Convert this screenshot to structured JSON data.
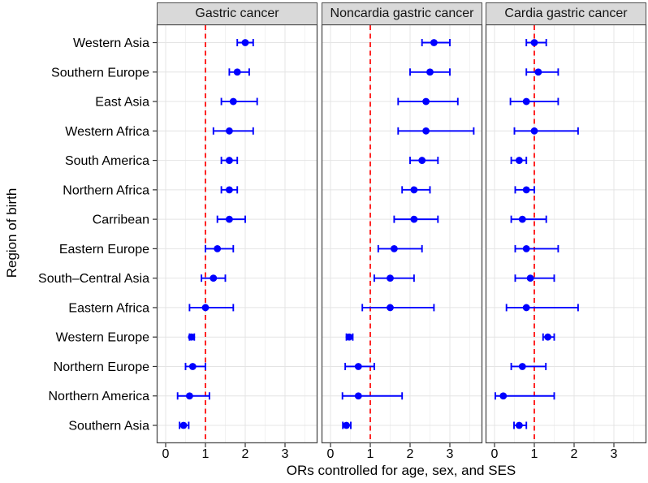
{
  "chart_data": {
    "type": "scatter",
    "variant": "forest-plot-with-error-bars",
    "facets": 3,
    "xlabel": "ORs controlled for age, sex, and SES",
    "ylabel": "Region of birth",
    "xticks": [
      0,
      1,
      2,
      3
    ],
    "xlim": [
      -0.22,
      3.8
    ],
    "grid": true,
    "legend": false,
    "reference_line": {
      "x": 1,
      "style": "dashed"
    },
    "categories": [
      "Western Asia",
      "Southern Europe",
      "East Asia",
      "Western Africa",
      "South America",
      "Northern Africa",
      "Carribean",
      "Eastern Europe",
      "South–Central Asia",
      "Eastern Africa",
      "Western Europe",
      "Northern Europe",
      "Northern America",
      "Southern Asia"
    ],
    "panels": [
      {
        "title": "Gastric cancer",
        "points": [
          {
            "or": 2.0,
            "lo": 1.8,
            "hi": 2.2
          },
          {
            "or": 1.8,
            "lo": 1.6,
            "hi": 2.1
          },
          {
            "or": 1.7,
            "lo": 1.4,
            "hi": 2.3
          },
          {
            "or": 1.6,
            "lo": 1.2,
            "hi": 2.2
          },
          {
            "or": 1.6,
            "lo": 1.4,
            "hi": 1.8
          },
          {
            "or": 1.6,
            "lo": 1.4,
            "hi": 1.8
          },
          {
            "or": 1.6,
            "lo": 1.3,
            "hi": 2.0
          },
          {
            "or": 1.3,
            "lo": 1.0,
            "hi": 1.7
          },
          {
            "or": 1.2,
            "lo": 0.9,
            "hi": 1.5
          },
          {
            "or": 1.0,
            "lo": 0.6,
            "hi": 1.7
          },
          {
            "or": 0.65,
            "lo": 0.6,
            "hi": 0.72
          },
          {
            "or": 0.68,
            "lo": 0.5,
            "hi": 1.0
          },
          {
            "or": 0.6,
            "lo": 0.3,
            "hi": 1.1
          },
          {
            "or": 0.45,
            "lo": 0.35,
            "hi": 0.58
          }
        ]
      },
      {
        "title": "Noncardia gastric cancer",
        "points": [
          {
            "or": 2.6,
            "lo": 2.3,
            "hi": 3.0
          },
          {
            "or": 2.5,
            "lo": 2.0,
            "hi": 3.0
          },
          {
            "or": 2.4,
            "lo": 1.7,
            "hi": 3.2
          },
          {
            "or": 2.4,
            "lo": 1.7,
            "hi": 3.6
          },
          {
            "or": 2.3,
            "lo": 2.0,
            "hi": 2.7
          },
          {
            "or": 2.1,
            "lo": 1.8,
            "hi": 2.5
          },
          {
            "or": 2.1,
            "lo": 1.6,
            "hi": 2.7
          },
          {
            "or": 1.6,
            "lo": 1.2,
            "hi": 2.3
          },
          {
            "or": 1.5,
            "lo": 1.1,
            "hi": 2.1
          },
          {
            "or": 1.5,
            "lo": 0.8,
            "hi": 2.6
          },
          {
            "or": 0.47,
            "lo": 0.4,
            "hi": 0.56
          },
          {
            "or": 0.7,
            "lo": 0.37,
            "hi": 1.1
          },
          {
            "or": 0.7,
            "lo": 0.3,
            "hi": 1.8
          },
          {
            "or": 0.4,
            "lo": 0.31,
            "hi": 0.51
          }
        ]
      },
      {
        "title": "Cardia gastric cancer",
        "points": [
          {
            "or": 1.0,
            "lo": 0.8,
            "hi": 1.3
          },
          {
            "or": 1.1,
            "lo": 0.8,
            "hi": 1.6
          },
          {
            "or": 0.8,
            "lo": 0.4,
            "hi": 1.6
          },
          {
            "or": 1.0,
            "lo": 0.5,
            "hi": 2.1
          },
          {
            "or": 0.62,
            "lo": 0.42,
            "hi": 0.8
          },
          {
            "or": 0.8,
            "lo": 0.52,
            "hi": 1.0
          },
          {
            "or": 0.7,
            "lo": 0.42,
            "hi": 1.3
          },
          {
            "or": 0.8,
            "lo": 0.52,
            "hi": 1.6
          },
          {
            "or": 0.9,
            "lo": 0.52,
            "hi": 1.5
          },
          {
            "or": 0.8,
            "lo": 0.3,
            "hi": 2.1
          },
          {
            "or": 1.34,
            "lo": 1.22,
            "hi": 1.5
          },
          {
            "or": 0.7,
            "lo": 0.42,
            "hi": 1.29
          },
          {
            "or": 0.22,
            "lo": 0.02,
            "hi": 1.5
          },
          {
            "or": 0.62,
            "lo": 0.49,
            "hi": 0.8
          }
        ]
      }
    ],
    "colors": {
      "point": "#0000FF",
      "reference": "#FF0000",
      "strip_bg": "#D9D9D9",
      "panel_border": "#4D4D4D",
      "grid_major": "#E4E4E4",
      "grid_minor": "#F2F2F2",
      "tick": "#333333",
      "text": "#000000"
    }
  }
}
